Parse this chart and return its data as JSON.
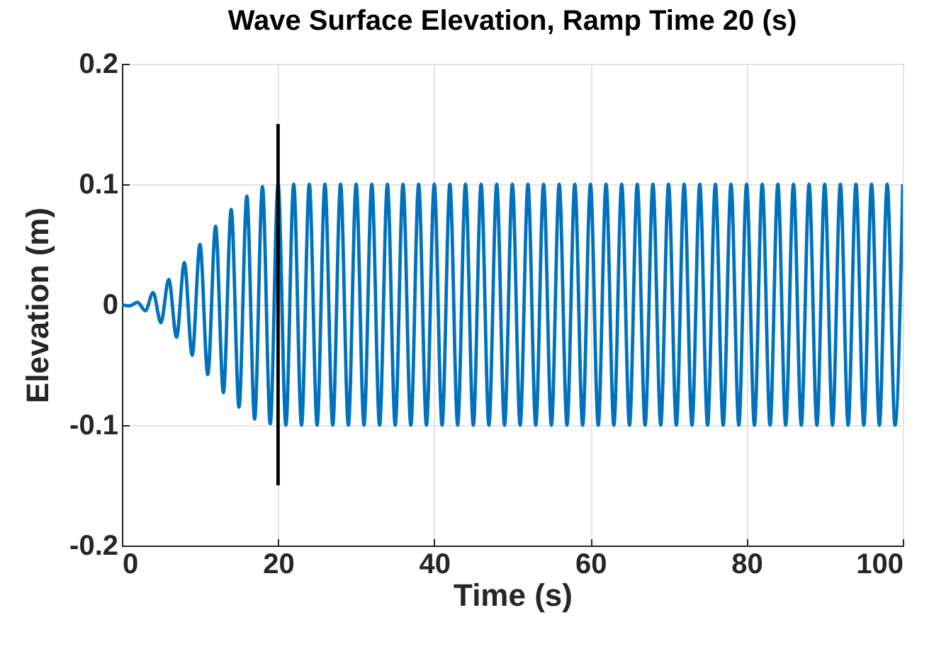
{
  "chart_data": {
    "type": "line",
    "title": "Wave Surface Elevation, Ramp Time 20 (s)",
    "xlabel": "Time (s)",
    "ylabel": "Elevation (m)",
    "xlim": [
      0,
      100
    ],
    "xticks": [
      0,
      20,
      40,
      60,
      80,
      100
    ],
    "ylim": [
      -0.2,
      0.2
    ],
    "yticks": [
      -0.2,
      -0.1,
      0,
      0.1,
      0.2
    ],
    "grid": true,
    "marker": "none",
    "line_style": "solid",
    "series": [
      {
        "color": "#0072bd",
        "x": [
          0,
          1,
          2,
          3,
          4,
          5,
          6,
          7,
          8,
          9,
          10,
          11,
          12,
          13,
          14,
          15,
          16,
          17,
          18,
          19,
          20,
          21,
          22,
          23,
          24,
          25,
          26,
          27,
          28,
          29,
          30,
          31,
          32,
          33,
          34,
          35,
          36,
          37,
          38,
          39,
          40,
          41,
          42,
          43,
          44,
          45,
          46,
          47,
          48,
          49,
          50,
          51,
          52,
          53,
          54,
          55,
          56,
          57,
          58,
          59,
          60,
          61,
          62,
          63,
          64,
          65,
          66,
          67,
          68,
          69,
          70,
          71,
          72,
          73,
          74,
          75,
          76,
          77,
          78,
          79,
          80,
          81,
          82,
          83,
          84,
          85,
          86,
          87,
          88,
          89,
          90,
          91,
          92,
          93,
          94,
          95,
          96,
          97,
          98,
          99,
          100
        ],
        "values": [
          0,
          -0.001,
          0.002,
          -0.005,
          0.01,
          -0.015,
          0.021,
          -0.027,
          0.035,
          -0.042,
          0.05,
          -0.058,
          0.065,
          -0.073,
          0.079,
          -0.085,
          0.09,
          -0.095,
          0.098,
          -0.099,
          0.1,
          -0.1,
          0.1,
          -0.1,
          0.1,
          -0.1,
          0.1,
          -0.1,
          0.1,
          -0.1,
          0.1,
          -0.1,
          0.1,
          -0.1,
          0.1,
          -0.1,
          0.1,
          -0.1,
          0.1,
          -0.1,
          0.1,
          -0.1,
          0.1,
          -0.1,
          0.1,
          -0.1,
          0.1,
          -0.1,
          0.1,
          -0.1,
          0.1,
          -0.1,
          0.1,
          -0.1,
          0.1,
          -0.1,
          0.1,
          -0.1,
          0.1,
          -0.1,
          0.1,
          -0.1,
          0.1,
          -0.1,
          0.1,
          -0.1,
          0.1,
          -0.1,
          0.1,
          -0.1,
          0.1,
          -0.1,
          0.1,
          -0.1,
          0.1,
          -0.1,
          0.1,
          -0.1,
          0.1,
          -0.1,
          0.1,
          -0.1,
          0.1,
          -0.1,
          0.1,
          -0.1,
          0.1,
          -0.1,
          0.1,
          -0.1,
          0.1,
          -0.1,
          0.1,
          -0.1,
          0.1,
          -0.1,
          0.1,
          -0.1,
          0.1,
          -0.1,
          0.1
        ]
      },
      {
        "color": "#000000",
        "x": [
          20,
          20
        ],
        "values": [
          -0.15,
          0.15
        ]
      }
    ]
  }
}
